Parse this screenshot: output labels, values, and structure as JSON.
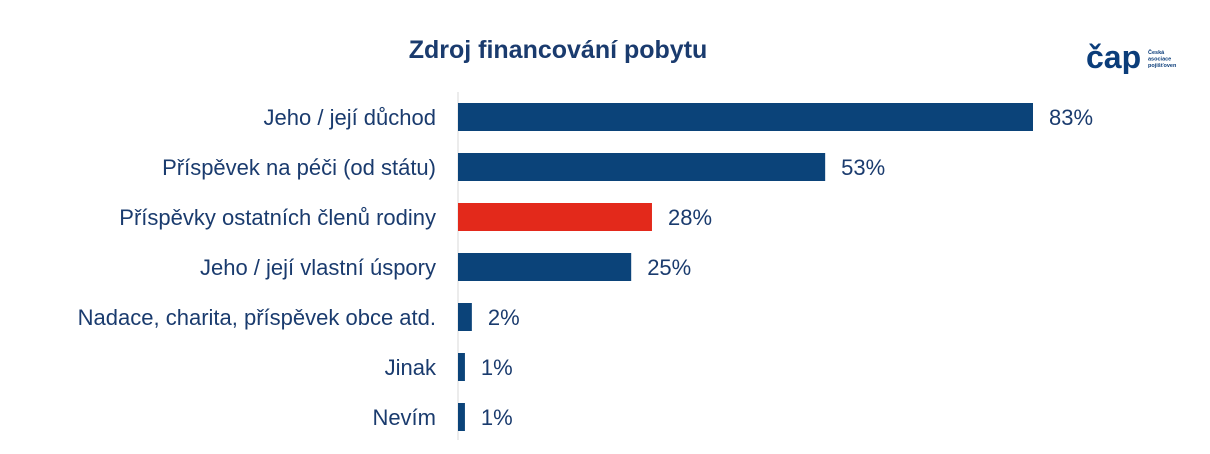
{
  "logo": {
    "wordmark": "čap",
    "tagline": [
      "Česká",
      "asociace",
      "pojišťoven"
    ],
    "color": "#0b3d7a"
  },
  "colors": {
    "bar": "#0b4379",
    "highlight": "#e3291b",
    "label": "#1a3b6e",
    "axis": "#d9d9d9"
  },
  "chart_data": {
    "type": "bar",
    "orientation": "horizontal",
    "title": "Zdroj financování pobytu",
    "categories": [
      "Jeho / její důchod",
      "Příspěvek na péči (od státu)",
      "Příspěvky ostatních členů rodiny",
      "Jeho / její vlastní úspory",
      "Nadace, charita, příspěvek obce atd.",
      "Jinak",
      "Nevím"
    ],
    "values": [
      83,
      53,
      28,
      25,
      2,
      1,
      1
    ],
    "value_labels": [
      "83%",
      "53%",
      "28%",
      "25%",
      "2%",
      "1%",
      "1%"
    ],
    "highlighted_index": 2,
    "xlim": [
      0,
      100
    ],
    "unit": "%",
    "grid": false,
    "legend": "none"
  }
}
